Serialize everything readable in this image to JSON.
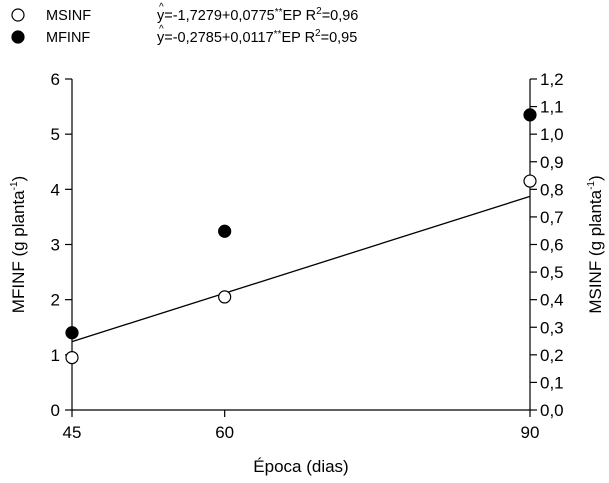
{
  "chart_data": {
    "type": "scatter",
    "xlabel": "Época (dias)",
    "ylabel_left": {
      "text": "MFINF (g planta",
      "sup": "-1",
      "close": ")"
    },
    "ylabel_right": {
      "text": "MSINF (g planta",
      "sup": "-1",
      "close": ")"
    },
    "x_ticks": [
      "45",
      "60",
      "90"
    ],
    "x_values": [
      45,
      60,
      90
    ],
    "xlim": [
      45,
      90
    ],
    "y_left": {
      "ylim": [
        0,
        6
      ],
      "ticks": [
        "0",
        "1",
        "2",
        "3",
        "4",
        "5",
        "6"
      ]
    },
    "y_right": {
      "ylim": [
        0,
        1.2
      ],
      "ticks": [
        "0,0",
        "0,1",
        "0,2",
        "0,3",
        "0,4",
        "0,5",
        "0,6",
        "0,7",
        "0,8",
        "0,9",
        "1,0",
        "1,1",
        "1,2"
      ]
    },
    "series": [
      {
        "name": "MSINF",
        "marker": "open-circle",
        "axis": "right",
        "x": [
          45,
          60,
          90
        ],
        "y": [
          0.19,
          0.41,
          0.83
        ],
        "equation": {
          "prefix": "y",
          "text": "=-1,7279+0,0775",
          "stars": "**",
          "var": "EP",
          "r2_label": "R",
          "r2_sup": "2",
          "r2_value": "=0,96"
        },
        "fit": {
          "intercept": -1.7279,
          "slope": 0.0775,
          "scale": 0.2
        }
      },
      {
        "name": "MFINF",
        "marker": "filled-circle",
        "axis": "left",
        "x": [
          45,
          60,
          90
        ],
        "y": [
          1.4,
          3.24,
          5.35
        ],
        "equation": {
          "prefix": "y",
          "text": "=-0,2785+0,0117",
          "stars": "**",
          "var": "EP",
          "r2_label": "R",
          "r2_sup": "2",
          "r2_value": "=0,95"
        },
        "fit": {
          "intercept": -0.2785,
          "slope": 0.0117,
          "scale": 5
        }
      }
    ],
    "colors": {
      "ink": "#000000",
      "background": "#ffffff"
    }
  }
}
